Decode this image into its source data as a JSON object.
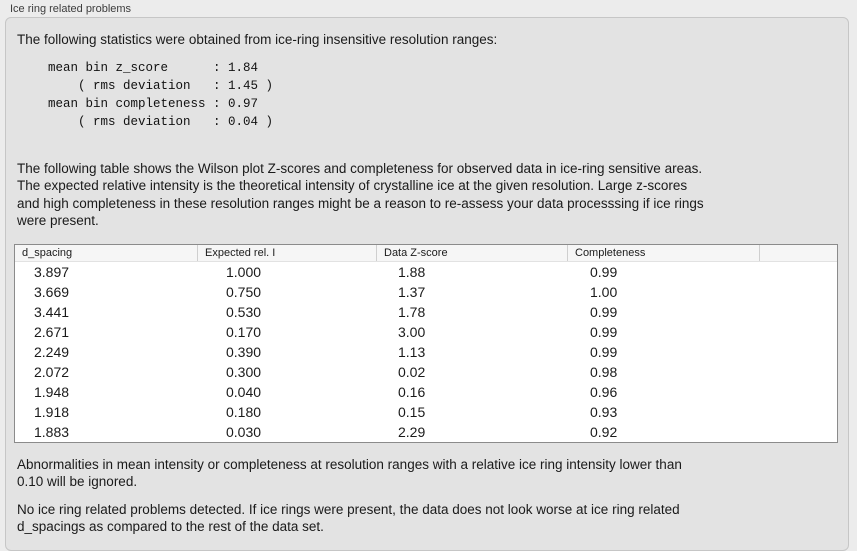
{
  "window": {
    "title": "Ice ring related problems"
  },
  "panel": {
    "intro": "The following statistics were obtained from ice-ring insensitive resolution ranges:",
    "stats_block": "mean bin z_score      : 1.84\n    ( rms deviation   : 1.45 )\nmean bin completeness : 0.97\n    ( rms deviation   : 0.04 )",
    "table_note": "The following table shows the Wilson plot Z-scores and completeness for observed data in ice-ring sensitive areas.\nThe expected relative intensity is the theoretical intensity of crystalline ice at the given resolution. Large z-scores\nand high completeness in these resolution ranges might be a reason to re-assess your data processsing if ice rings\nwere present.",
    "ignore_note": "Abnormalities in mean intensity or completeness at resolution ranges with a relative ice ring intensity lower than\n0.10 will be ignored.",
    "conclusion": "No ice ring related problems detected. If ice rings were present, the data does not look worse at ice ring related\nd_spacings as compared to the rest of the data set."
  },
  "table": {
    "columns": [
      "d_spacing",
      "Expected rel. I",
      "Data Z-score",
      "Completeness",
      ""
    ],
    "column_keys": [
      "d-spacing",
      "expected-rel-i",
      "data-z-score",
      "completeness"
    ],
    "rows": [
      [
        "3.897",
        "1.000",
        "1.88",
        "0.99"
      ],
      [
        "3.669",
        "0.750",
        "1.37",
        "1.00"
      ],
      [
        "3.441",
        "0.530",
        "1.78",
        "0.99"
      ],
      [
        "2.671",
        "0.170",
        "3.00",
        "0.99"
      ],
      [
        "2.249",
        "0.390",
        "1.13",
        "0.99"
      ],
      [
        "2.072",
        "0.300",
        "0.02",
        "0.98"
      ],
      [
        "1.948",
        "0.040",
        "0.16",
        "0.96"
      ],
      [
        "1.918",
        "0.180",
        "0.15",
        "0.93"
      ],
      [
        "1.883",
        "0.030",
        "2.29",
        "0.92"
      ]
    ]
  },
  "colors": {
    "page_bg": "#ececec",
    "panel_bg": "#e3e3e3",
    "panel_border": "#c6c6c6",
    "table_border": "#8b8b8b",
    "table_header_bg": "#f6f6f6",
    "table_row_bg": "#ffffff",
    "text": "#1a1a1a"
  }
}
